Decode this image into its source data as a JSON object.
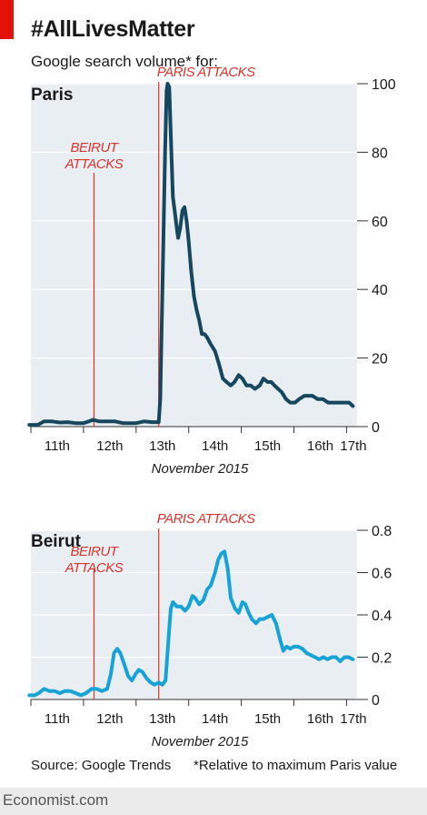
{
  "header": {
    "title": "#AllLivesMatter",
    "subtitle": "Google search volume* for:"
  },
  "footer": {
    "source": "Source: Google Trends",
    "footnote": "*Relative to maximum Paris value",
    "brand": "Economist.com"
  },
  "colors": {
    "accent_red": "#e3120b",
    "annotation_red": "#d8342c",
    "paris_line": "#16475e",
    "beirut_line": "#18a3d6",
    "panel_bg": "#e9eef3",
    "grid": "#ffffff"
  },
  "chart_data": [
    {
      "type": "line",
      "title": "Paris",
      "xlabel": "November 2015",
      "ylabel": "",
      "ylim": [
        0,
        100
      ],
      "yticks": [
        0,
        20,
        40,
        60,
        80,
        100
      ],
      "xlim": [
        11,
        17.2
      ],
      "xticks": [
        11,
        12,
        13,
        14,
        15,
        16,
        17
      ],
      "xtick_labels": [
        "11th",
        "12th",
        "13th",
        "14th",
        "15th",
        "16th",
        "17th"
      ],
      "grid": true,
      "annotations": [
        {
          "text_lines": [
            "BEIRUT",
            "ATTACKS"
          ],
          "x": 12.2
        },
        {
          "text_lines": [
            "PARIS ATTACKS"
          ],
          "x": 13.43
        }
      ],
      "series": [
        {
          "x": [
            10.97,
            11.13,
            11.25,
            11.4,
            11.55,
            11.7,
            11.85,
            12.0,
            12.1,
            12.18,
            12.3,
            12.45,
            12.6,
            12.75,
            12.9,
            13.0,
            13.15,
            13.3,
            13.38,
            13.43,
            13.46,
            13.5,
            13.55,
            13.58,
            13.6,
            13.63,
            13.66,
            13.7,
            13.74,
            13.78,
            13.8,
            13.84,
            13.88,
            13.92,
            13.96,
            14.0,
            14.05,
            14.1,
            14.15,
            14.2,
            14.25,
            14.3,
            14.35,
            14.42,
            14.5,
            14.58,
            14.65,
            14.72,
            14.8,
            14.87,
            14.95,
            15.02,
            15.1,
            15.18,
            15.26,
            15.35,
            15.42,
            15.5,
            15.57,
            15.63,
            15.7,
            15.77,
            15.85,
            15.93,
            16.02,
            16.1,
            16.2,
            16.28,
            16.35,
            16.45,
            16.55,
            16.65,
            16.75,
            16.85,
            16.95,
            17.05,
            17.12
          ],
          "y": [
            0.5,
            0.5,
            1.5,
            1.5,
            1.2,
            1.3,
            1.0,
            1.0,
            1.5,
            2.0,
            1.5,
            1.5,
            1.5,
            1.0,
            1.0,
            1.0,
            1.5,
            1.3,
            1.3,
            1.3,
            8,
            40,
            80,
            98,
            100,
            99,
            85,
            67,
            62,
            57,
            55,
            58,
            63,
            64,
            60,
            54,
            45,
            38,
            34,
            31,
            27,
            27,
            26,
            24,
            22,
            18,
            14,
            13,
            12,
            13,
            15,
            14,
            12,
            12,
            11,
            12,
            14,
            13,
            13,
            12,
            11,
            10,
            8,
            7,
            7,
            8,
            9,
            9,
            9,
            8,
            8,
            7,
            7,
            7,
            7,
            7,
            6
          ]
        }
      ]
    },
    {
      "type": "line",
      "title": "Beirut",
      "xlabel": "November 2015",
      "ylabel": "",
      "ylim": [
        0,
        0.8
      ],
      "yticks": [
        0,
        0.2,
        0.4,
        0.6,
        0.8
      ],
      "ytick_labels": [
        "0",
        "0.2",
        "0.4",
        "0.6",
        "0.8"
      ],
      "xlim": [
        11,
        17.2
      ],
      "xticks": [
        11,
        12,
        13,
        14,
        15,
        16,
        17
      ],
      "xtick_labels": [
        "11th",
        "12th",
        "13th",
        "14th",
        "15th",
        "16th",
        "17th"
      ],
      "grid": true,
      "annotations": [
        {
          "text_lines": [
            "BEIRUT",
            "ATTACKS"
          ],
          "x": 12.2
        },
        {
          "text_lines": [
            "PARIS ATTACKS"
          ],
          "x": 13.43
        }
      ],
      "series": [
        {
          "x": [
            10.97,
            11.07,
            11.15,
            11.25,
            11.35,
            11.45,
            11.55,
            11.65,
            11.75,
            11.85,
            11.95,
            12.05,
            12.15,
            12.25,
            12.35,
            12.45,
            12.52,
            12.58,
            12.64,
            12.7,
            12.77,
            12.85,
            12.92,
            12.99,
            13.05,
            13.12,
            13.2,
            13.28,
            13.35,
            13.43,
            13.5,
            13.56,
            13.62,
            13.66,
            13.7,
            13.77,
            13.85,
            13.93,
            14.0,
            14.07,
            14.12,
            14.2,
            14.28,
            14.35,
            14.42,
            14.5,
            14.56,
            14.62,
            14.68,
            14.74,
            14.8,
            14.88,
            14.95,
            15.02,
            15.08,
            15.14,
            15.2,
            15.28,
            15.35,
            15.42,
            15.5,
            15.58,
            15.66,
            15.74,
            15.8,
            15.86,
            15.93,
            16.0,
            16.08,
            16.16,
            16.24,
            16.32,
            16.4,
            16.48,
            16.56,
            16.64,
            16.72,
            16.8,
            16.88,
            16.96,
            17.04,
            17.12
          ],
          "y": [
            0.02,
            0.02,
            0.03,
            0.05,
            0.04,
            0.04,
            0.03,
            0.04,
            0.04,
            0.03,
            0.02,
            0.03,
            0.05,
            0.05,
            0.04,
            0.05,
            0.12,
            0.22,
            0.24,
            0.22,
            0.17,
            0.11,
            0.09,
            0.12,
            0.14,
            0.13,
            0.1,
            0.08,
            0.07,
            0.08,
            0.07,
            0.09,
            0.3,
            0.43,
            0.46,
            0.44,
            0.44,
            0.42,
            0.44,
            0.49,
            0.48,
            0.45,
            0.47,
            0.52,
            0.54,
            0.6,
            0.66,
            0.69,
            0.7,
            0.62,
            0.48,
            0.43,
            0.41,
            0.46,
            0.45,
            0.41,
            0.38,
            0.36,
            0.38,
            0.38,
            0.39,
            0.4,
            0.36,
            0.28,
            0.23,
            0.25,
            0.24,
            0.25,
            0.25,
            0.24,
            0.22,
            0.21,
            0.2,
            0.19,
            0.2,
            0.19,
            0.2,
            0.2,
            0.18,
            0.2,
            0.2,
            0.19
          ]
        }
      ]
    }
  ]
}
